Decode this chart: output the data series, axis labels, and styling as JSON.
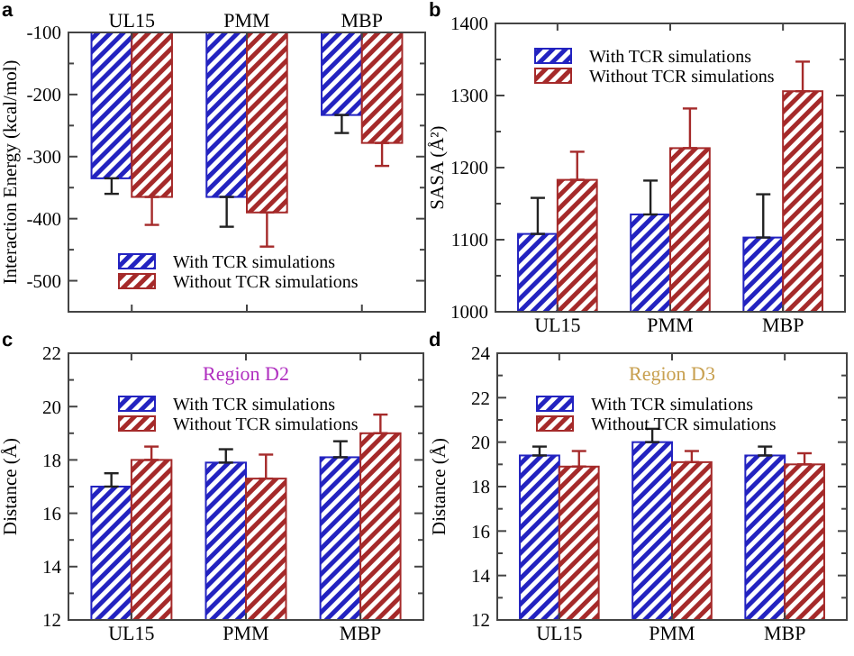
{
  "chart_data": [
    {
      "type": "bar",
      "ylabel": "Interaction Energy (kcal/mol)",
      "categories": [
        "UL15",
        "PMM",
        "MBP"
      ],
      "ylim": [
        -550,
        -100
      ],
      "yticks": [
        -100,
        -200,
        -300,
        -400,
        -500
      ],
      "legend": "bottom",
      "annotations": [
        "a"
      ],
      "series": [
        {
          "name": "With TCR simulations",
          "color": "#2323c0",
          "values": [
            -335,
            -365,
            -233
          ],
          "errors": [
            [
              -360,
              -335
            ],
            [
              -413,
              -365
            ],
            [
              -262,
              -233
            ]
          ]
        },
        {
          "name": "Without TCR simulations",
          "color": "#a52a2a",
          "values": [
            -365,
            -390,
            -278
          ],
          "errors": [
            [
              -410,
              -365
            ],
            [
              -445,
              -390
            ],
            [
              -315,
              -278
            ]
          ]
        }
      ]
    },
    {
      "type": "bar",
      "ylabel": "SASA (Å²)",
      "categories": [
        "UL15",
        "PMM",
        "MBP"
      ],
      "ylim": [
        1000,
        1400
      ],
      "yticks": [
        1000,
        1100,
        1200,
        1300,
        1400
      ],
      "legend": "top",
      "annotations": [
        "b"
      ],
      "series": [
        {
          "name": "With TCR simulations",
          "color": "#2323c0",
          "values": [
            1108,
            1135,
            1103
          ],
          "errors": [
            [
              1108,
              1158
            ],
            [
              1135,
              1182
            ],
            [
              1103,
              1163
            ]
          ]
        },
        {
          "name": "Without TCR simulations",
          "color": "#a52a2a",
          "values": [
            1183,
            1227,
            1306
          ],
          "errors": [
            [
              1183,
              1222
            ],
            [
              1227,
              1282
            ],
            [
              1306,
              1347
            ]
          ]
        }
      ]
    },
    {
      "type": "bar",
      "title": "Region D2",
      "ylabel": "Distance (Å)",
      "categories": [
        "UL15",
        "PMM",
        "MBP"
      ],
      "ylim": [
        12,
        22
      ],
      "yticks": [
        12,
        14,
        16,
        18,
        20,
        22
      ],
      "legend": "top",
      "annotations": [
        "c"
      ],
      "series": [
        {
          "name": "With TCR simulations",
          "color": "#2323c0",
          "values": [
            17.0,
            17.9,
            18.1
          ],
          "errors": [
            [
              17.0,
              17.5
            ],
            [
              17.9,
              18.4
            ],
            [
              18.1,
              18.7
            ]
          ]
        },
        {
          "name": "Without TCR simulations",
          "color": "#a52a2a",
          "values": [
            18.0,
            17.3,
            19.0
          ],
          "errors": [
            [
              18.0,
              18.5
            ],
            [
              17.3,
              18.2
            ],
            [
              19.0,
              19.7
            ]
          ]
        }
      ]
    },
    {
      "type": "bar",
      "title": "Region D3",
      "ylabel": "Distance (Å)",
      "categories": [
        "UL15",
        "PMM",
        "MBP"
      ],
      "ylim": [
        12,
        24
      ],
      "yticks": [
        12,
        14,
        16,
        18,
        20,
        22,
        24
      ],
      "legend": "top",
      "annotations": [
        "d"
      ],
      "series": [
        {
          "name": "With TCR simulations",
          "color": "#2323c0",
          "values": [
            19.4,
            20.0,
            19.4
          ],
          "errors": [
            [
              19.4,
              19.8
            ],
            [
              20.0,
              20.6
            ],
            [
              19.4,
              19.8
            ]
          ]
        },
        {
          "name": "Without TCR simulations",
          "color": "#a52a2a",
          "values": [
            18.9,
            19.1,
            19.0
          ],
          "errors": [
            [
              18.9,
              19.6
            ],
            [
              19.1,
              19.6
            ],
            [
              19.0,
              19.5
            ]
          ]
        }
      ]
    }
  ]
}
